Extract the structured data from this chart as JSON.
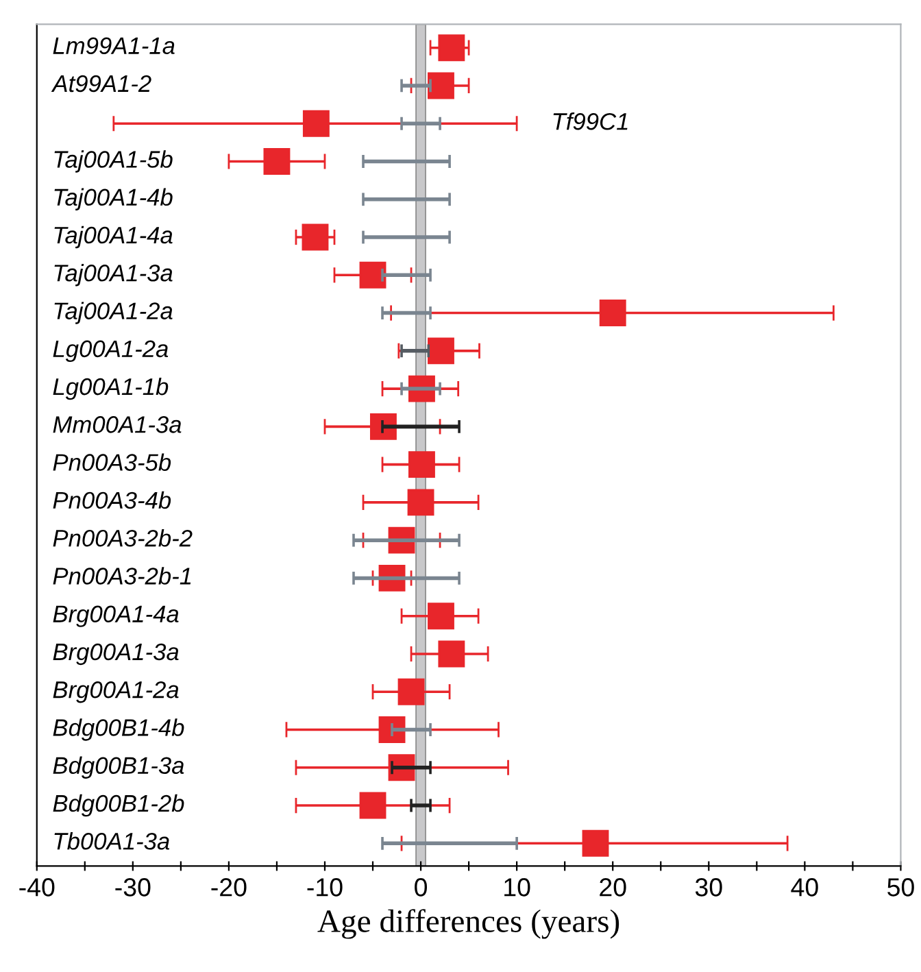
{
  "chart_data": {
    "type": "scatter",
    "orientation": "horizontal",
    "xlabel": "Age differences (years)",
    "categories": [
      "Lm99A1-1a",
      "At99A1-2",
      "Tf99C1",
      "Taj00A1-5b",
      "Taj00A1-4b",
      "Taj00A1-4a",
      "Taj00A1-3a",
      "Taj00A1-2a",
      "Lg00A1-2a",
      "Lg00A1-1b",
      "Mm00A1-3a",
      "Pn00A3-5b",
      "Pn00A3-4b",
      "Pn00A3-2b-2",
      "Pn00A3-2b-1",
      "Brg00A1-4a",
      "Brg00A1-3a",
      "Brg00A1-2a",
      "Bdg00B1-4b",
      "Bdg00B1-3a",
      "Bdg00B1-2b",
      "Tb00A1-3a"
    ],
    "series": [
      {
        "type": "bar",
        "color": "#7a8590",
        "colors": [
          null,
          null,
          null,
          null,
          null,
          null,
          null,
          null,
          "#555b62",
          null,
          "#222222",
          null,
          null,
          null,
          null,
          null,
          null,
          null,
          null,
          "#222222",
          "#222222",
          null
        ],
        "base": [
          null,
          -2,
          -2,
          -6,
          -6,
          -6,
          -4,
          -4,
          -2,
          -2,
          -4,
          null,
          null,
          -7,
          -7,
          null,
          null,
          null,
          -3,
          -3,
          -1,
          -4
        ],
        "values": [
          null,
          3,
          4,
          9,
          9,
          9,
          5,
          5,
          2.8,
          4,
          8,
          null,
          null,
          11,
          11,
          null,
          null,
          null,
          4,
          4,
          2,
          14
        ]
      },
      {
        "marker": "square",
        "color": "#e8262b",
        "values": [
          3.2,
          2.1,
          -10.9,
          -15,
          null,
          -11,
          -5,
          20,
          2.1,
          0.1,
          -3.9,
          0.1,
          0,
          -2,
          -3,
          2.1,
          3.2,
          -1,
          -3,
          -2,
          -5,
          18.2
        ],
        "errors": [
          [
            1,
            5
          ],
          [
            -1,
            5
          ],
          [
            -32,
            10
          ],
          [
            -20,
            -10
          ],
          null,
          [
            -13,
            -9
          ],
          [
            -9,
            -1
          ],
          [
            -3.1,
            43
          ],
          [
            -2.3,
            6.1
          ],
          [
            -4,
            3.9
          ],
          [
            -10,
            2
          ],
          [
            -4,
            4
          ],
          [
            -6,
            6
          ],
          [
            -6,
            2
          ],
          [
            -5,
            -1
          ],
          [
            -2,
            6
          ],
          [
            -1,
            7
          ],
          [
            -5,
            3
          ],
          [
            -14,
            8.1
          ],
          [
            -13,
            9.1
          ],
          [
            -13,
            3
          ],
          [
            -2,
            38.2
          ]
        ]
      }
    ],
    "bands": [
      {
        "axis": "x",
        "from": -0.5,
        "to": 0.5,
        "color": "#c8c8ca"
      }
    ],
    "xlim": [
      -40,
      50
    ],
    "xticks": [
      -40,
      {
        "value": -35,
        "label": null
      },
      -30,
      {
        "value": -25,
        "label": null
      },
      -20,
      {
        "value": -15,
        "label": null
      },
      -10,
      {
        "value": -5,
        "label": null
      },
      0,
      {
        "value": 5,
        "label": null
      },
      10,
      {
        "value": 15,
        "label": null
      },
      20,
      {
        "value": 25,
        "label": null
      },
      30,
      {
        "value": 35,
        "label": null
      },
      40,
      {
        "value": 45,
        "label": null
      },
      50
    ],
    "grid": false,
    "legend": false
  }
}
